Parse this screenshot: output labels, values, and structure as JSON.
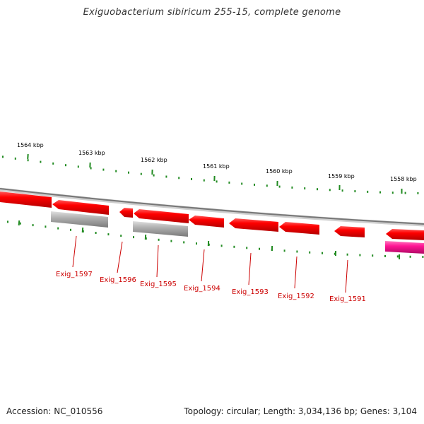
{
  "title": "Exiguobacterium sibiricum 255-15, complete genome",
  "accession_label": "Accession: NC_010556",
  "summary_label": "Topology: circular; Length: 3,034,136 bp; Genes: 3,104",
  "colors": {
    "backbone": "#8c8c8c",
    "cds": "#ff0000",
    "pseudo": "#a8a8a8",
    "rna": "#ff1493",
    "tick": "#228b22",
    "label": "#cc0000"
  },
  "ticks": [
    {
      "label": "1564 kbp"
    },
    {
      "label": "1563 kbp"
    },
    {
      "label": "1562 kbp"
    },
    {
      "label": "1561 kbp"
    },
    {
      "label": "1560 kbp"
    },
    {
      "label": "1559 kbp"
    },
    {
      "label": "1558 kbp"
    }
  ],
  "genes": [
    {
      "name": "Exig_1597"
    },
    {
      "name": "Exig_1596"
    },
    {
      "name": "Exig_1595"
    },
    {
      "name": "Exig_1594"
    },
    {
      "name": "Exig_1593"
    },
    {
      "name": "Exig_1592"
    },
    {
      "name": "Exig_1591"
    }
  ]
}
